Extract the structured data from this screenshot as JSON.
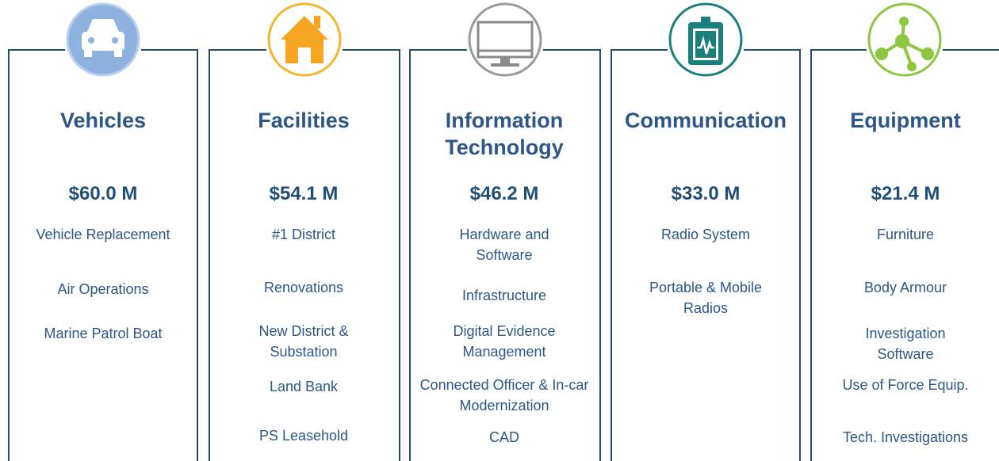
{
  "columns": [
    {
      "title": "Vehicles",
      "amount": "$60.0 M",
      "items": [
        "Vehicle Replacement",
        "Air Operations",
        "Marine Patrol Boat"
      ]
    },
    {
      "title": "Facilities",
      "amount": "$54.1 M",
      "items": [
        "#1 District",
        "Renovations",
        "New District & Substation",
        "Land Bank",
        "PS Leasehold"
      ]
    },
    {
      "title": "Information Technology",
      "amount": "$46.2 M",
      "items": [
        "Hardware and Software",
        "Infrastructure",
        "Digital Evidence Management",
        "Connected Officer & In-car Modernization",
        "CAD"
      ]
    },
    {
      "title": "Communication",
      "amount": "$33.0 M",
      "items": [
        "Radio System",
        "Portable & Mobile Radios"
      ]
    },
    {
      "title": "Equipment",
      "amount": "$21.4 M",
      "items": [
        "Furniture",
        "Body Armour",
        "Investigation Software",
        "Use of Force Equip.",
        "Tech. Investigations"
      ]
    }
  ]
}
